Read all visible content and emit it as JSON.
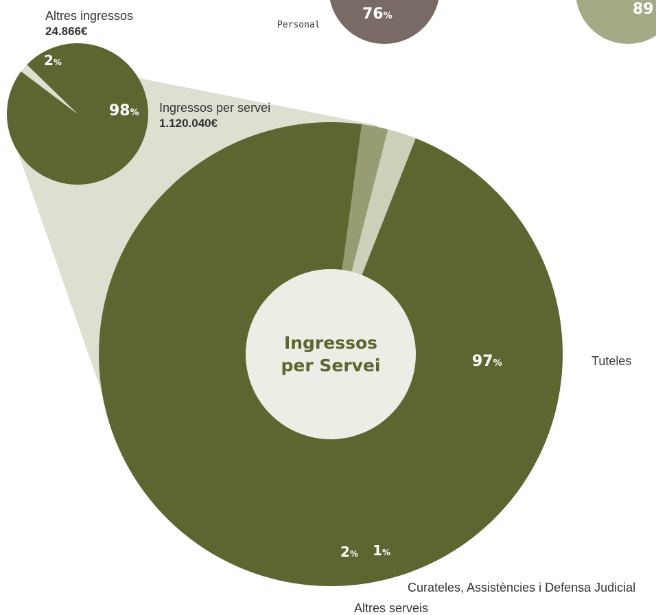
{
  "colors": {
    "dark_olive": "#5c6631",
    "mid_olive": "#979c72",
    "light_sage": "#cdd0b8",
    "funnel": "#dddfd0",
    "center_fill": "#ecede4",
    "brown_grey": "#786b66",
    "sage_top": "#a5aa86",
    "text": "#333333",
    "center_text": "#5c6631"
  },
  "top": {
    "personal_label": "Personal",
    "personal_pct": "76",
    "right_pct": "89",
    "pct_symbol": "%"
  },
  "small_pie": {
    "other_label": "Altres ingressos",
    "other_amount": "24.866€",
    "other_pct": "2",
    "service_label": "Ingressos per servei",
    "service_amount": "1.120.040€",
    "service_pct": "98"
  },
  "big_donut": {
    "center_line1": "Ingressos",
    "center_line2": "per Servei",
    "tuteles_label": "Tuteles",
    "tuteles_pct": "97",
    "curateles_label": "Curateles, Assistències i Defensa Judicial",
    "curateles_pct": "1",
    "altres_label": "Altres serveis",
    "altres_pct": "2"
  },
  "chart_data": [
    {
      "type": "pie",
      "slices": [
        {
          "label": "Ingressos per servei",
          "value": 98,
          "amount": "1.120.040€"
        },
        {
          "label": "Altres ingressos",
          "value": 2,
          "amount": "24.866€"
        }
      ]
    },
    {
      "type": "pie",
      "donut": true,
      "center_label": "Ingressos per Servei",
      "slices": [
        {
          "label": "Tuteles",
          "value": 97
        },
        {
          "label": "Curateles, Assistències i Defensa Judicial",
          "value": 1
        },
        {
          "label": "Altres serveis",
          "value": 2
        }
      ]
    }
  ]
}
